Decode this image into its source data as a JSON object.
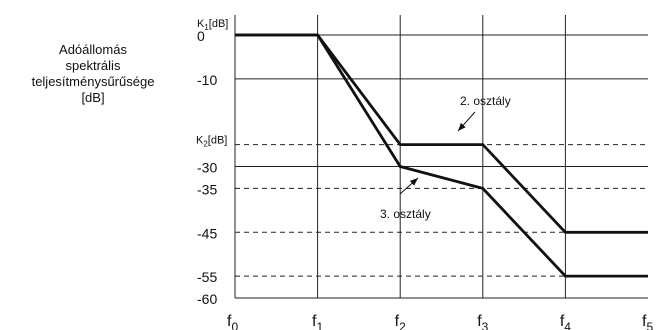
{
  "chart_data": {
    "type": "line",
    "ylabel_lines": [
      "Adóállomás",
      "spektrális",
      "teljesítménysűrűsége",
      "[dB]"
    ],
    "x_ticks": [
      {
        "id": "f0",
        "sym": "f",
        "sub": "0",
        "x": 0
      },
      {
        "id": "f1",
        "sym": "f",
        "sub": "1",
        "x": 1
      },
      {
        "id": "f2",
        "sym": "f",
        "sub": "2",
        "x": 2
      },
      {
        "id": "f3",
        "sym": "f",
        "sub": "3",
        "x": 3
      },
      {
        "id": "f4",
        "sym": "f",
        "sub": "4",
        "x": 4
      },
      {
        "id": "f5",
        "sym": "f",
        "sub": "5",
        "x": 5
      }
    ],
    "x_range": [
      0,
      5
    ],
    "ylim": [
      -60,
      0
    ],
    "y_top_label": {
      "sym": "K",
      "sub": "1",
      "unit": "[dB]",
      "y": 0
    },
    "y_tick_labels": [
      {
        "label": "0",
        "y": 0
      },
      {
        "label": "-10",
        "y": -10
      },
      {
        "label": "-30",
        "y": -30
      },
      {
        "label": "-35",
        "y": -35
      },
      {
        "label": "-45",
        "y": -45
      },
      {
        "label": "-55",
        "y": -55
      },
      {
        "label": "-60",
        "y": -60
      }
    ],
    "y_k2_label": {
      "sym": "K",
      "sub": "2",
      "unit": "[dB]",
      "y": -25
    },
    "solid_hlines": [
      0,
      -10,
      -30,
      -60
    ],
    "dashed_hlines": [
      -25,
      -35,
      -45,
      -55
    ],
    "vgrid_x": [
      1,
      2,
      3,
      4
    ],
    "series": [
      {
        "name": "2. osztály",
        "points": [
          [
            0,
            0
          ],
          [
            1,
            0
          ],
          [
            2,
            -25
          ],
          [
            3,
            -25
          ],
          [
            4,
            -45
          ],
          [
            5,
            -45
          ]
        ]
      },
      {
        "name": "3. osztály",
        "points": [
          [
            0,
            0
          ],
          [
            1,
            0
          ],
          [
            2,
            -30
          ],
          [
            3,
            -35
          ],
          [
            4,
            -55
          ],
          [
            5,
            -55
          ]
        ]
      }
    ],
    "annotations": [
      {
        "text": "2. osztály",
        "series": 0
      },
      {
        "text": "3. osztály",
        "series": 1
      }
    ]
  }
}
